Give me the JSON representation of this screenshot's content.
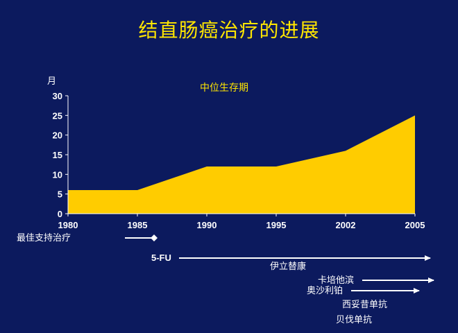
{
  "title": "结直肠癌治疗的进展",
  "chart_data": {
    "type": "area",
    "title": "中位生存期",
    "ylabel": "月",
    "xlabel": "",
    "ylim": [
      0,
      30
    ],
    "yticks": [
      0,
      5,
      10,
      15,
      20,
      25,
      30
    ],
    "x_ticks": [
      "1980",
      "1985",
      "1990",
      "1995",
      "2002",
      "2005"
    ],
    "series": [
      {
        "values": [
          6,
          6,
          12,
          12,
          16,
          25
        ],
        "color": "#ffcc00"
      }
    ],
    "grid": false
  },
  "treatments": [
    {
      "label": "最佳支持治疗",
      "arrow": "diamond"
    },
    {
      "label": "5-FU",
      "arrow": "arrow"
    },
    {
      "label": "伊立替康",
      "arrow": "none"
    },
    {
      "label": "卡培他滨",
      "arrow": "arrow"
    },
    {
      "label": "奥沙利铂",
      "arrow": "arrow"
    },
    {
      "label": "西妥昔单抗",
      "arrow": "none"
    },
    {
      "label": "贝伐单抗",
      "arrow": "none"
    }
  ],
  "colors": {
    "background": "#0c1a5e",
    "accent": "#ffe600",
    "area": "#ffcc00",
    "text": "#ffffff"
  }
}
